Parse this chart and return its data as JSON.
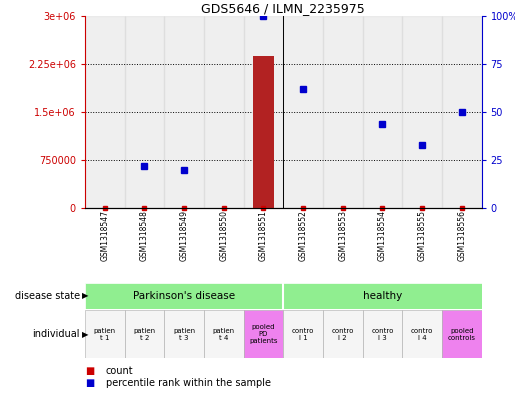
{
  "title": "GDS5646 / ILMN_2235975",
  "samples": [
    "GSM1318547",
    "GSM1318548",
    "GSM1318549",
    "GSM1318550",
    "GSM1318551",
    "GSM1318552",
    "GSM1318553",
    "GSM1318554",
    "GSM1318555",
    "GSM1318556"
  ],
  "count_values": [
    0,
    0,
    0,
    0,
    2380000,
    0,
    0,
    0,
    0,
    0
  ],
  "percentile_values": [
    null,
    22,
    20,
    null,
    100,
    62,
    null,
    44,
    33,
    50
  ],
  "bar_color": "#b22222",
  "dot_color": "#0000cd",
  "ylim_left": [
    0,
    3000000
  ],
  "ylim_right": [
    0,
    100
  ],
  "yticks_left": [
    0,
    750000,
    1500000,
    2250000,
    3000000
  ],
  "ytick_labels_left": [
    "0",
    "750000",
    "1.5e+06",
    "2.25e+06",
    "3e+06"
  ],
  "yticks_right": [
    0,
    25,
    50,
    75,
    100
  ],
  "ytick_labels_right": [
    "0",
    "25",
    "50",
    "75",
    "100%"
  ],
  "pd_group_label": "Parkinson's disease",
  "healthy_group_label": "healthy",
  "group_color": "#90EE90",
  "pooled_color": "#EE82EE",
  "sample_bg_color": "#D3D3D3",
  "left_axis_color": "#CC0000",
  "right_axis_color": "#0000CD",
  "bg_color": "#FFFFFF",
  "bar_width": 0.55,
  "dot_size": 4,
  "small_sq_size": 3,
  "indiv_labels": [
    "patien\nt 1",
    "patien\nt 2",
    "patien\nt 3",
    "patien\nt 4",
    "pooled\nPD\npatients",
    "contro\nl 1",
    "contro\nl 2",
    "contro\nl 3",
    "contro\nl 4",
    "pooled\ncontrols"
  ],
  "indiv_bg": [
    "#F5F5F5",
    "#F5F5F5",
    "#F5F5F5",
    "#F5F5F5",
    "#EE82EE",
    "#F5F5F5",
    "#F5F5F5",
    "#F5F5F5",
    "#F5F5F5",
    "#EE82EE"
  ]
}
